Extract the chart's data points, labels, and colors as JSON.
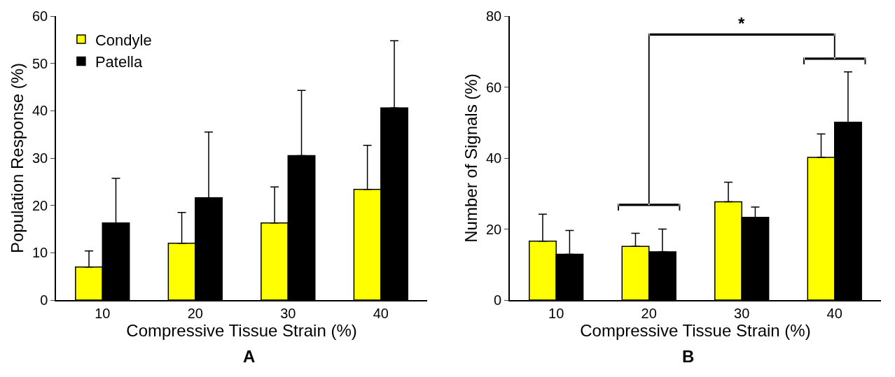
{
  "chart_data": [
    {
      "type": "bar",
      "xlabel": "Compressive Tissue Strain (%)",
      "ylabel": "Population Response (%)",
      "annotations": [
        "A"
      ],
      "categories": [
        "10",
        "20",
        "30",
        "40"
      ],
      "ylim": [
        0,
        60
      ],
      "yticks": [
        0,
        10,
        20,
        30,
        40,
        50,
        60
      ],
      "legend": "top left",
      "series": [
        {
          "name": "Condyle",
          "color": "#ffff00",
          "values": [
            7.0,
            12.0,
            16.3,
            23.4
          ],
          "errors": [
            [
              7.0,
              10.4
            ],
            [
              12.0,
              18.5
            ],
            [
              16.3,
              23.9
            ],
            [
              23.4,
              32.7
            ]
          ]
        },
        {
          "name": "Patella",
          "color": "#000000",
          "values": [
            16.3,
            21.6,
            30.5,
            40.6
          ],
          "errors": [
            [
              16.3,
              25.7
            ],
            [
              21.6,
              35.5
            ],
            [
              30.5,
              44.3
            ],
            [
              40.6,
              54.8
            ]
          ]
        }
      ]
    },
    {
      "type": "bar",
      "xlabel": "Compressive Tissue Strain (%)",
      "ylabel": "Number of Signals (%)",
      "annotations": [
        "B",
        "*"
      ],
      "categories": [
        "10",
        "20",
        "30",
        "40"
      ],
      "ylim": [
        0,
        80
      ],
      "yticks": [
        0,
        20,
        40,
        60,
        80
      ],
      "legend": false,
      "series": [
        {
          "color": "#ffff00",
          "values": [
            16.6,
            15.1,
            27.7,
            40.2
          ],
          "errors": [
            [
              16.6,
              24.2
            ],
            [
              15.1,
              18.8
            ],
            [
              27.7,
              33.2
            ],
            [
              40.2,
              46.8
            ]
          ]
        },
        {
          "color": "#000000",
          "values": [
            12.9,
            13.6,
            23.3,
            50.1
          ],
          "errors": [
            [
              12.9,
              19.6
            ],
            [
              13.6,
              20.0
            ],
            [
              23.3,
              26.2
            ],
            [
              50.1,
              64.3
            ]
          ]
        }
      ]
    }
  ]
}
